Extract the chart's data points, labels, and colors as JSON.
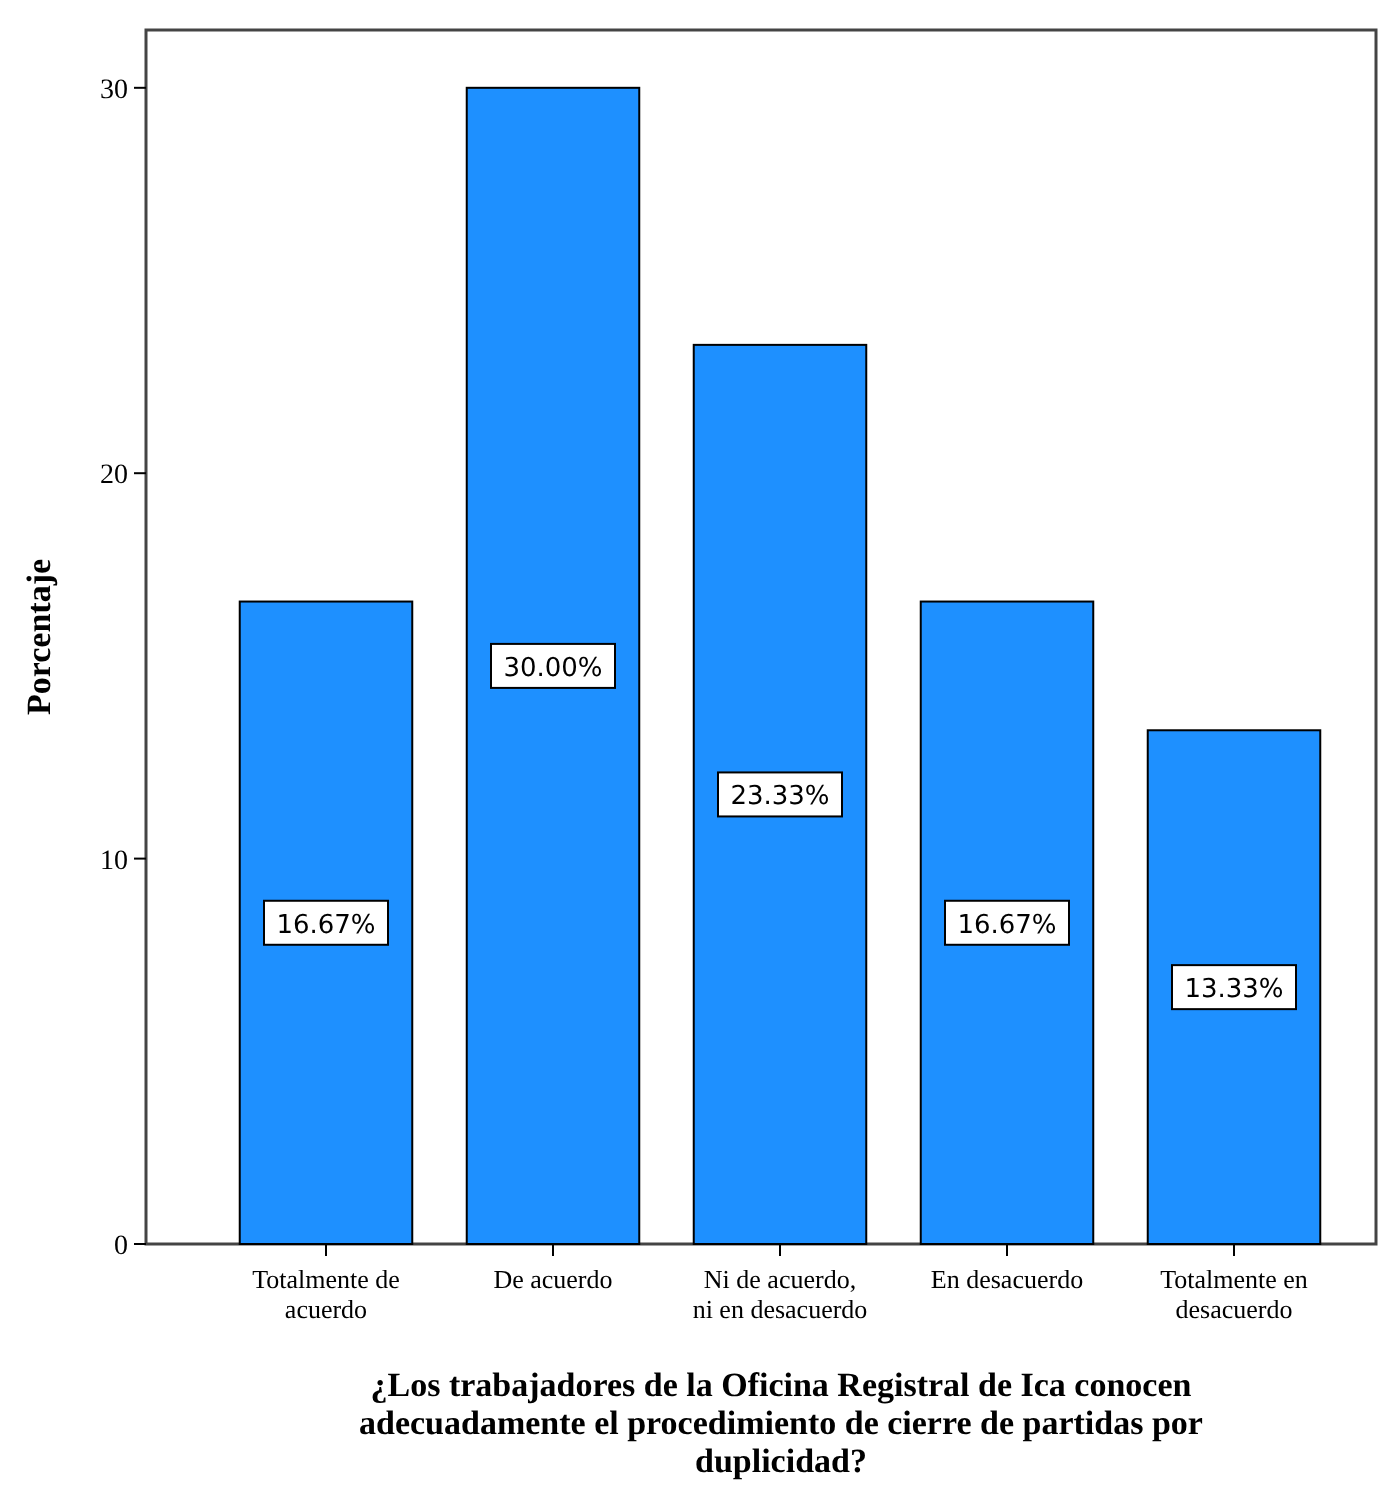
{
  "chart_data": {
    "type": "bar",
    "xlabel": "¿Los trabajadores de la Oficina Registral de Ica conocen adecuadamente el procedimiento de cierre de partidas por duplicidad?",
    "ylabel": "Porcentaje",
    "categories": [
      "Totalmente de acuerdo",
      "De acuerdo",
      "Ni de acuerdo, ni en desacuerdo",
      "En desacuerdo",
      "Totalmente en desacuerdo"
    ],
    "values": [
      16.67,
      30.0,
      23.33,
      16.67,
      13.33
    ],
    "value_labels": [
      "16.67%",
      "30.00%",
      "23.33%",
      "16.67%",
      "13.33%"
    ],
    "color": "#1e90ff",
    "ylim": [
      0,
      31.5
    ],
    "yticks": [
      0,
      10,
      20,
      30
    ],
    "grid": false
  }
}
